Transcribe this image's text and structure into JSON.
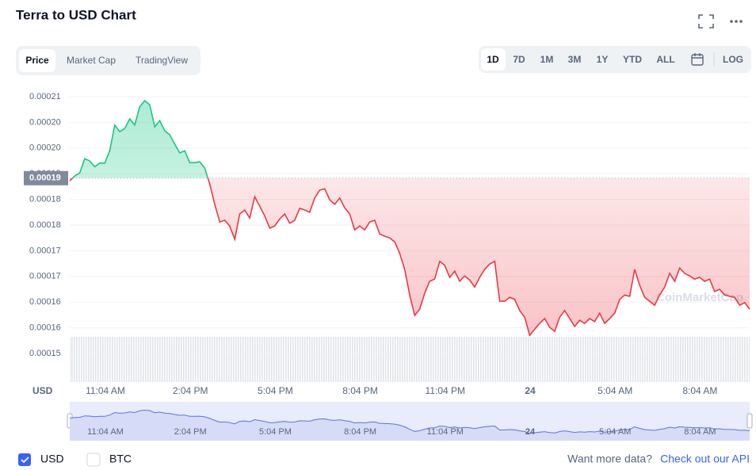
{
  "header": {
    "title": "Terra to USD Chart"
  },
  "tabs": [
    "Price",
    "Market Cap",
    "TradingView"
  ],
  "ranges": [
    "1D",
    "7D",
    "1M",
    "3M",
    "1Y",
    "YTD",
    "ALL",
    "LOG"
  ],
  "footer": {
    "options": [
      "USD",
      "BTC"
    ],
    "prompt": "Want more data?",
    "link": "Check out our API"
  },
  "chart_data": {
    "type": "line",
    "y_label": "USD",
    "watermark": "CoinMarketCap",
    "up_color": "#16c784",
    "down_color": "#ea3943",
    "baseline": {
      "value": 0.0001896,
      "label": "0.00019"
    },
    "xtick_labels": [
      "11:04 AM",
      "2:04 PM",
      "5:04 PM",
      "8:04 PM",
      "11:04 PM",
      "24",
      "5:04 AM",
      "8:04 AM"
    ],
    "ylim": [
      0.00015,
      0.000208
    ],
    "yticks": [
      {
        "value": 0.00015,
        "label": "0.00015"
      },
      {
        "value": 0.0001558,
        "label": "0.00016"
      },
      {
        "value": 0.0001616,
        "label": "0.00016"
      },
      {
        "value": 0.0001674,
        "label": "0.00017"
      },
      {
        "value": 0.0001732,
        "label": "0.00017"
      },
      {
        "value": 0.000179,
        "label": "0.00018"
      },
      {
        "value": 0.0001848,
        "label": "0.00018"
      },
      {
        "value": 0.0001906,
        "label": "0.00019"
      },
      {
        "value": 0.0001964,
        "label": "0.00020"
      },
      {
        "value": 0.0002022,
        "label": "0.00020"
      },
      {
        "value": 0.000208,
        "label": "0.00021"
      }
    ],
    "grid": true,
    "values": [
      0.000189,
      0.0001901,
      0.0001908,
      0.000194,
      0.0001935,
      0.0001922,
      0.000193,
      0.000193,
      0.0001958,
      0.0002016,
      0.0002001,
      0.0002008,
      0.000203,
      0.0002016,
      0.0002057,
      0.0002071,
      0.0002062,
      0.0002012,
      0.0002026,
      0.0002003,
      0.0001994,
      0.0001973,
      0.0001953,
      0.0001958,
      0.0001931,
      0.0001931,
      0.0001933,
      0.0001919,
      0.0001883,
      0.0001837,
      0.0001797,
      0.0001801,
      0.0001788,
      0.0001758,
      0.0001815,
      0.0001824,
      0.0001806,
      0.0001854,
      0.0001833,
      0.0001811,
      0.0001783,
      0.0001788,
      0.0001804,
      0.0001815,
      0.0001794,
      0.0001801,
      0.0001828,
      0.0001824,
      0.0001819,
      0.0001851,
      0.0001869,
      0.0001872,
      0.0001847,
      0.0001837,
      0.0001851,
      0.0001829,
      0.0001815,
      0.0001779,
      0.0001788,
      0.0001779,
      0.0001797,
      0.0001801,
      0.000177,
      0.0001765,
      0.0001761,
      0.0001752,
      0.0001726,
      0.000169,
      0.0001632,
      0.0001586,
      0.00016,
      0.0001636,
      0.0001663,
      0.0001668,
      0.0001708,
      0.0001699,
      0.0001672,
      0.0001686,
      0.0001663,
      0.0001675,
      0.0001666,
      0.000165,
      0.0001672,
      0.000169,
      0.0001702,
      0.0001708,
      0.0001618,
      0.0001618,
      0.0001627,
      0.0001622,
      0.0001597,
      0.0001582,
      0.0001541,
      0.0001555,
      0.0001568,
      0.0001579,
      0.0001559,
      0.000155,
      0.0001582,
      0.0001597,
      0.0001579,
      0.0001561,
      0.0001575,
      0.0001568,
      0.0001579,
      0.0001572,
      0.0001591,
      0.0001568,
      0.0001579,
      0.0001591,
      0.0001622,
      0.0001632,
      0.0001629,
      0.000169,
      0.0001654,
      0.0001627,
      0.0001618,
      0.0001609,
      0.0001632,
      0.000165,
      0.0001681,
      0.0001663,
      0.0001693,
      0.0001681,
      0.0001675,
      0.0001668,
      0.0001672,
      0.0001663,
      0.0001668,
      0.000164,
      0.0001645,
      0.0001632,
      0.0001629,
      0.0001627,
      0.0001609,
      0.0001615,
      0.00016
    ]
  }
}
